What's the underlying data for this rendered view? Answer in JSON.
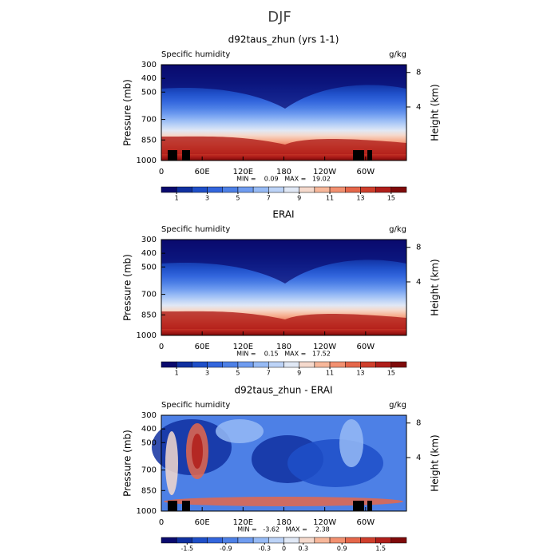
{
  "title": "DJF",
  "chart_data": [
    {
      "type": "contour",
      "title": "d92taus_zhun (yrs 1-1)",
      "left_label": "Specific humidity",
      "right_label": "g/kg",
      "ylabel": "Pressure (mb)",
      "y2label": "Height (km)",
      "xlim": [
        0,
        360
      ],
      "xticks": [
        0,
        {
          "value": 60,
          "label": "60E"
        },
        {
          "value": 120,
          "label": "120E"
        },
        180,
        {
          "value": 240,
          "label": "120W"
        },
        {
          "value": 300,
          "label": "60W"
        }
      ],
      "ylim": [
        1000,
        300
      ],
      "yticks": [
        300,
        400,
        500,
        700,
        850,
        1000
      ],
      "y2lim": [
        -2.2,
        8.9
      ],
      "y2ticks": [
        4,
        8
      ],
      "stats": "MIN =    0.09   MAX =   19.02",
      "colorbar": {
        "lim": [
          0,
          16
        ],
        "ticks": [
          1,
          3,
          5,
          7,
          9,
          11,
          13,
          15
        ],
        "colors": [
          "#0a0a6e",
          "#1030a0",
          "#1f4fc8",
          "#3366dd",
          "#4d80e6",
          "#6f9cf0",
          "#96baf5",
          "#bcd3f7",
          "#e0e8f5",
          "#f5d9cc",
          "#f7b79a",
          "#f29070",
          "#e5674a",
          "#cf3f2c",
          "#b01e1a",
          "#7f0a0a"
        ]
      }
    },
    {
      "type": "contour",
      "title": "ERAI",
      "left_label": "Specific humidity",
      "right_label": "g/kg",
      "ylabel": "Pressure (mb)",
      "y2label": "Height (km)",
      "xlim": [
        0,
        360
      ],
      "xticks": [
        0,
        {
          "value": 60,
          "label": "60E"
        },
        {
          "value": 120,
          "label": "120E"
        },
        180,
        {
          "value": 240,
          "label": "120W"
        },
        {
          "value": 300,
          "label": "60W"
        }
      ],
      "ylim": [
        1000,
        300
      ],
      "yticks": [
        300,
        400,
        500,
        700,
        850,
        1000
      ],
      "y2lim": [
        -2.2,
        8.9
      ],
      "y2ticks": [
        4,
        8
      ],
      "stats": "MIN =    0.15   MAX =   17.52",
      "colorbar": {
        "lim": [
          0,
          16
        ],
        "ticks": [
          1,
          3,
          5,
          7,
          9,
          11,
          13,
          15
        ],
        "colors": [
          "#0a0a6e",
          "#1030a0",
          "#1f4fc8",
          "#3366dd",
          "#4d80e6",
          "#6f9cf0",
          "#96baf5",
          "#bcd3f7",
          "#e0e8f5",
          "#f5d9cc",
          "#f7b79a",
          "#f29070",
          "#e5674a",
          "#cf3f2c",
          "#b01e1a",
          "#7f0a0a"
        ]
      }
    },
    {
      "type": "contour-diff",
      "title": "d92taus_zhun - ERAI",
      "left_label": "Specific humidity",
      "right_label": "g/kg",
      "ylabel": "Pressure (mb)",
      "y2label": "Height (km)",
      "xlim": [
        0,
        360
      ],
      "xticks": [
        0,
        {
          "value": 60,
          "label": "60E"
        },
        {
          "value": 120,
          "label": "120E"
        },
        180,
        {
          "value": 240,
          "label": "120W"
        },
        {
          "value": 300,
          "label": "60W"
        }
      ],
      "ylim": [
        1000,
        300
      ],
      "yticks": [
        300,
        400,
        500,
        700,
        850,
        1000
      ],
      "y2lim": [
        -2.2,
        8.9
      ],
      "y2ticks": [
        4,
        8
      ],
      "stats": "MIN =   -3.62   MAX =    2.38",
      "colorbar": {
        "lim": [
          -1.9,
          1.9
        ],
        "ticks": [
          -1.5,
          -0.9,
          -0.3,
          0,
          0.3,
          0.9,
          1.5
        ],
        "colors": [
          "#0a0a6e",
          "#1030a0",
          "#1f4fc8",
          "#3366dd",
          "#4d80e6",
          "#6f9cf0",
          "#96baf5",
          "#bcd3f7",
          "#e0e8f5",
          "#f5d9cc",
          "#f7b79a",
          "#f29070",
          "#e5674a",
          "#cf3f2c",
          "#b01e1a",
          "#7f0a0a"
        ]
      }
    }
  ]
}
